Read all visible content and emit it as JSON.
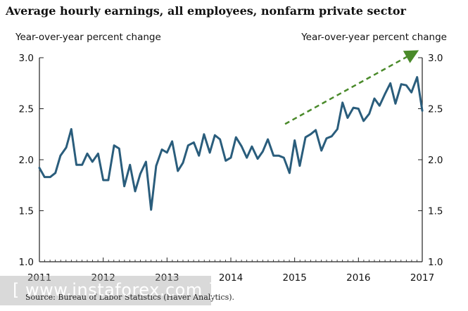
{
  "chart_data": {
    "type": "line",
    "title": "Average hourly earnings, all employees, nonfarm private sector",
    "ylabel_left": "Year-over-year percent change",
    "ylabel_right": "Year-over-year percent change",
    "ylim": [
      1.0,
      3.0
    ],
    "yticks": [
      "1.0",
      "1.5",
      "2.0",
      "2.5",
      "3.0"
    ],
    "xlim": [
      2011.0,
      2017.0
    ],
    "xticks": [
      "2011",
      "2012",
      "2013",
      "2014",
      "2015",
      "2016",
      "2017"
    ],
    "grid": false,
    "series": [
      {
        "color": "#2a5d7c",
        "x": [
          2011.0,
          2011.08,
          2011.17,
          2011.25,
          2011.33,
          2011.42,
          2011.5,
          2011.58,
          2011.67,
          2011.75,
          2011.83,
          2011.92,
          2012.0,
          2012.08,
          2012.17,
          2012.25,
          2012.33,
          2012.42,
          2012.5,
          2012.58,
          2012.67,
          2012.75,
          2012.83,
          2012.92,
          2013.0,
          2013.08,
          2013.17,
          2013.25,
          2013.33,
          2013.42,
          2013.5,
          2013.58,
          2013.67,
          2013.75,
          2013.83,
          2013.92,
          2014.0,
          2014.08,
          2014.17,
          2014.25,
          2014.33,
          2014.42,
          2014.5,
          2014.58,
          2014.67,
          2014.75,
          2014.83,
          2014.92,
          2015.0,
          2015.08,
          2015.17,
          2015.25,
          2015.33,
          2015.42,
          2015.5,
          2015.58,
          2015.67,
          2015.75,
          2015.83,
          2015.92,
          2016.0,
          2016.08,
          2016.17,
          2016.25,
          2016.33,
          2016.42,
          2016.5,
          2016.58,
          2016.67,
          2016.75,
          2016.83,
          2016.92,
          2017.0
        ],
        "values": [
          1.92,
          1.83,
          1.83,
          1.87,
          2.04,
          2.12,
          2.3,
          1.95,
          1.95,
          2.06,
          1.98,
          2.06,
          1.8,
          1.8,
          2.14,
          2.11,
          1.74,
          1.95,
          1.69,
          1.86,
          1.98,
          1.51,
          1.94,
          2.1,
          2.07,
          2.18,
          1.89,
          1.97,
          2.14,
          2.17,
          2.04,
          2.25,
          2.07,
          2.24,
          2.2,
          1.99,
          2.02,
          2.22,
          2.13,
          2.02,
          2.13,
          2.01,
          2.08,
          2.2,
          2.04,
          2.04,
          2.02,
          1.87,
          2.19,
          1.94,
          2.22,
          2.25,
          2.29,
          2.09,
          2.21,
          2.23,
          2.3,
          2.56,
          2.41,
          2.51,
          2.5,
          2.38,
          2.45,
          2.6,
          2.53,
          2.65,
          2.75,
          2.55,
          2.74,
          2.73,
          2.66,
          2.81,
          2.48
        ]
      }
    ],
    "annotations": [
      {
        "type": "dashed-arrow",
        "color": "#4a8a2a",
        "from": [
          2014.85,
          2.35
        ],
        "to": [
          2016.85,
          3.04
        ]
      }
    ]
  },
  "watermark": "[ www.instaforex.com ]",
  "source": "Source: Bureau of Labor Statistics (Haver Analytics)."
}
